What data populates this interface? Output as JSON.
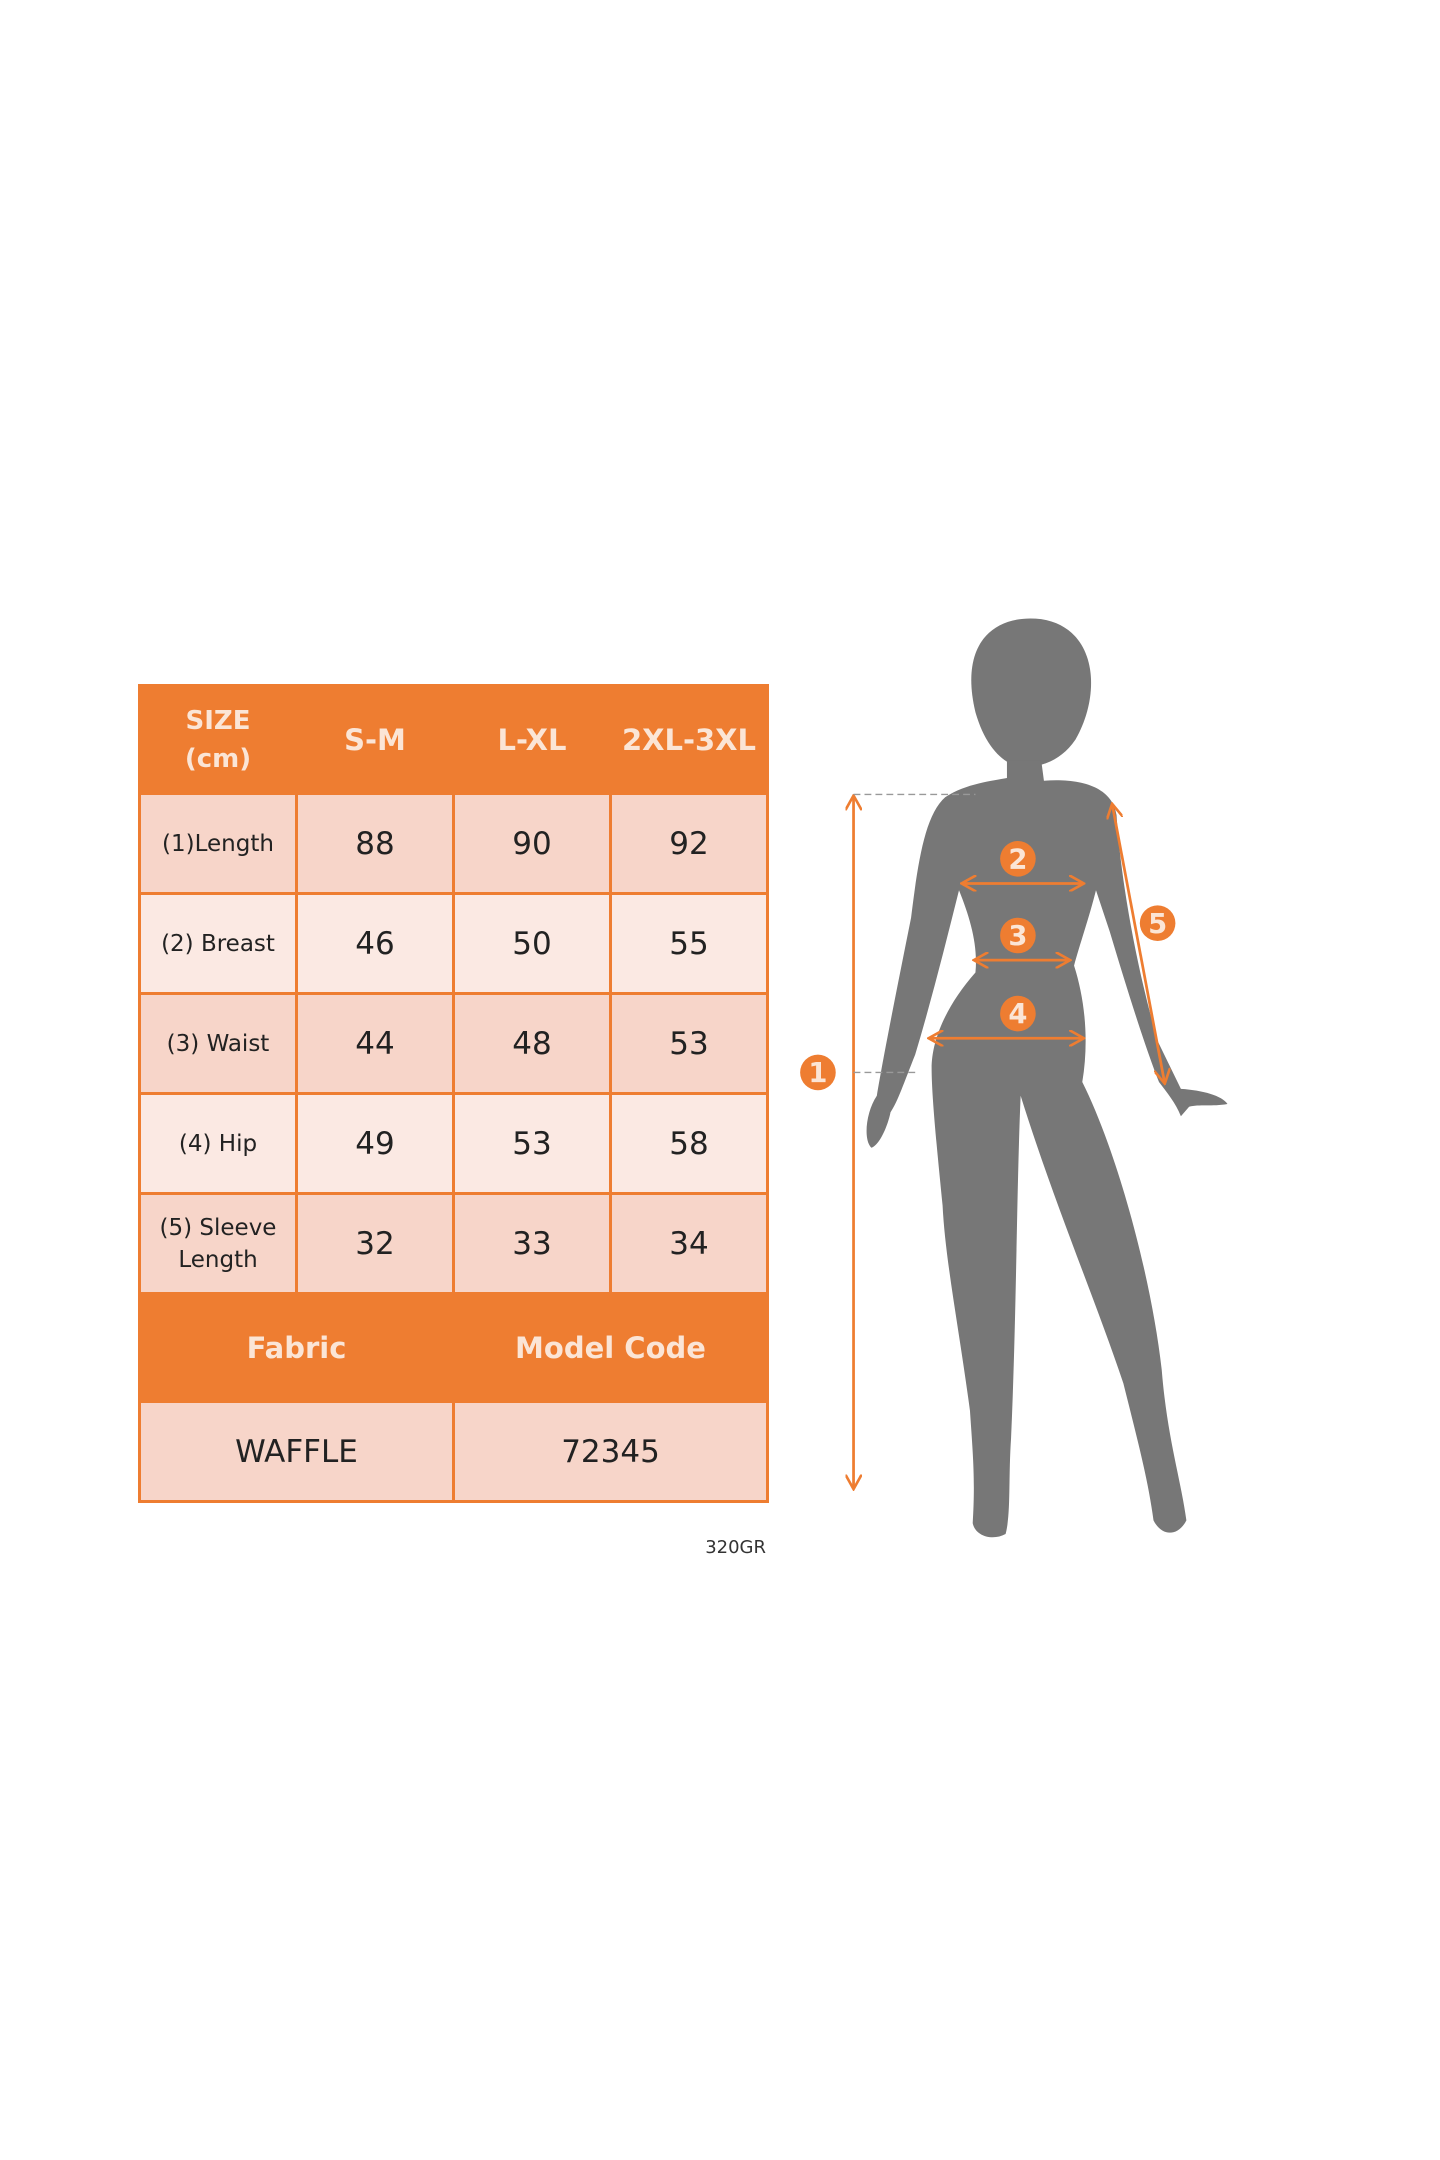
{
  "table": {
    "header": [
      "SIZE",
      "(cm)",
      "S-M",
      "L-XL",
      "2XL-3XL"
    ],
    "rows": [
      {
        "label": "(1)Length",
        "values": [
          "88",
          "90",
          "92"
        ]
      },
      {
        "label": "(2) Breast",
        "values": [
          "46",
          "50",
          "55"
        ]
      },
      {
        "label": "(3) Waist",
        "values": [
          "44",
          "48",
          "53"
        ]
      },
      {
        "label": "(4) Hip",
        "values": [
          "49",
          "53",
          "58"
        ]
      },
      {
        "label_line1": "(5) Sleeve",
        "label_line2": "Length",
        "values": [
          "32",
          "33",
          "34"
        ]
      }
    ],
    "fabric_label": "Fabric",
    "model_code_label": "Model Code",
    "fabric_value": "WAFFLE",
    "model_code_value": "72345"
  },
  "code_note": "320GR",
  "figure": {
    "markers": [
      "1",
      "2",
      "3",
      "4",
      "5"
    ],
    "accent_color": "#ee7d31",
    "silhouette_color": "#777777"
  }
}
